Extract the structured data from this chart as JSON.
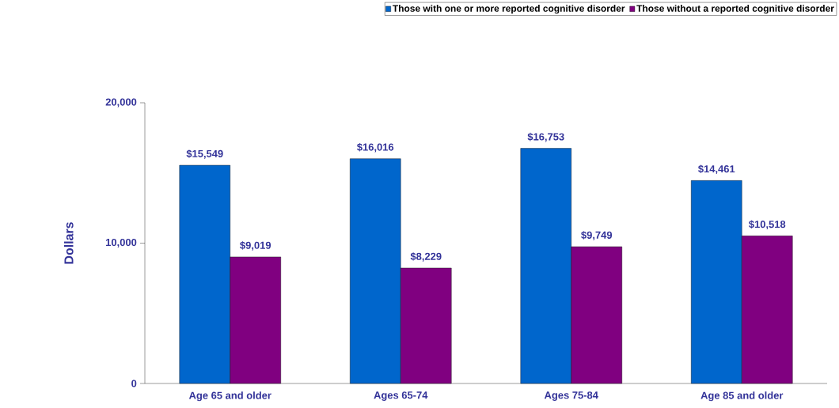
{
  "chart_data": {
    "type": "bar",
    "ylabel": "Dollars",
    "categories": [
      "Age 65 and older",
      "Ages 65-74",
      "Ages 75-84",
      "Age 85 and older"
    ],
    "series": [
      {
        "name": "Those with one or more reported cognitive disorder",
        "color": "#0066cc",
        "values": [
          15549,
          16016,
          16753,
          14461
        ],
        "value_labels": [
          "$15,549",
          "$16,016",
          "$16,753",
          "$14,461"
        ]
      },
      {
        "name": "Those without a reported cognitive disorder",
        "color": "#800080",
        "values": [
          9019,
          8229,
          9749,
          10518
        ],
        "value_labels": [
          "$9,019",
          "$8,229",
          "$9,749",
          "$10,518"
        ]
      }
    ],
    "ylim": [
      0,
      20000
    ],
    "yticks": [
      {
        "value": 0,
        "label": "0"
      },
      {
        "value": 10000,
        "label": "10,000"
      },
      {
        "value": 20000,
        "label": "20,000"
      }
    ],
    "grid": false,
    "legend": "top right"
  }
}
